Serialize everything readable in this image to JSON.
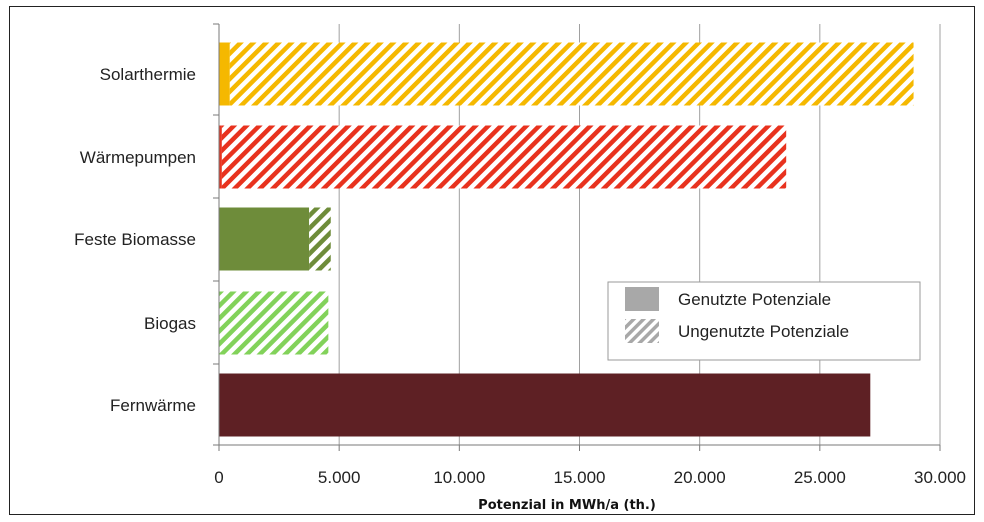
{
  "chart_data": {
    "type": "bar",
    "orientation": "horizontal",
    "stacked": true,
    "categories": [
      "Solarthermie",
      "Wärmepumpen",
      "Feste Biomasse",
      "Biogas",
      "Fernwärme"
    ],
    "series": [
      {
        "name": "Genutzte Potenziale",
        "values": [
          450,
          120,
          3750,
          0,
          27100
        ],
        "fill": "solid"
      },
      {
        "name": "Ungenutzte Potenziale",
        "values": [
          28450,
          23480,
          900,
          4550,
          0
        ],
        "fill": "hatched"
      }
    ],
    "bar_colors": [
      "#f5b800",
      "#e8321e",
      "#6e8c3a",
      "#82d25a",
      "#5e2024"
    ],
    "xlabel": "Potenzial in MWh/a (th.)",
    "xlim": [
      0,
      30000
    ],
    "xticks": [
      0,
      5000,
      10000,
      15000,
      20000,
      25000,
      30000
    ],
    "xtick_labels": [
      "0",
      "5.000",
      "10.000",
      "15.000",
      "20.000",
      "25.000",
      "30.000"
    ],
    "grid": "vertical",
    "legend_position": "right-center"
  }
}
